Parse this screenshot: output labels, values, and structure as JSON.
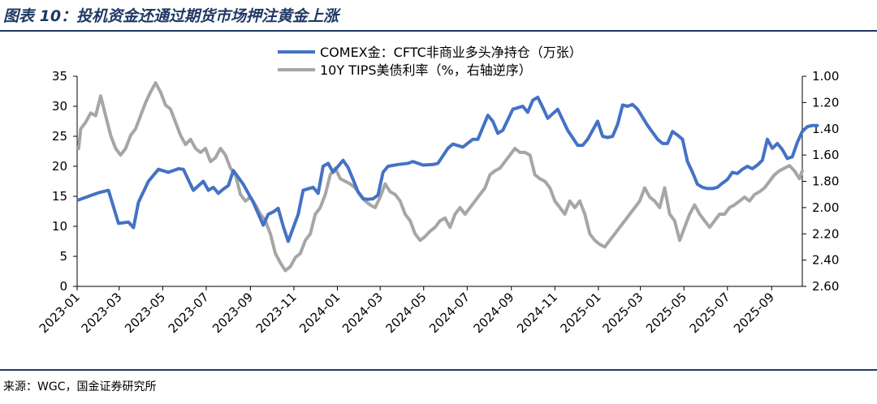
{
  "figure": {
    "title": "图表 10：投机资金还通过期货市场押注黄金上涨",
    "source": "来源：WGC，国金证券研究所"
  },
  "colors": {
    "series1": "#4472c4",
    "series2": "#a6a6a6",
    "rule": "#1f3864",
    "axis": "#000000"
  },
  "chart_data": {
    "type": "line",
    "title": "",
    "legend_position": "top-center",
    "grid": false,
    "x_ticks": [
      "2023-01",
      "2023-03",
      "2023-05",
      "2023-07",
      "2023-09",
      "2023-11",
      "2024-01",
      "2024-03",
      "2024-05",
      "2024-07",
      "2024-09",
      "2024-11",
      "2025-01",
      "2025-03",
      "2025-05",
      "2025-07",
      "2025-09"
    ],
    "xlim": [
      "2023-01-01",
      "2025-10-14"
    ],
    "y_left": {
      "ticks": [
        "0",
        "5",
        "10",
        "15",
        "20",
        "25",
        "30",
        "35"
      ],
      "lim": [
        0,
        35
      ]
    },
    "y_right": {
      "ticks": [
        "1.00",
        "1.20",
        "1.40",
        "1.60",
        "1.80",
        "2.00",
        "2.20",
        "2.40",
        "2.60"
      ],
      "lim": [
        1.0,
        2.6
      ],
      "reversed": true
    },
    "series": [
      {
        "name": "COMEX金：CFTC非商业多头净持仓（万张）",
        "axis": "left",
        "points": [
          [
            "2023-01-03",
            14.4
          ],
          [
            "2023-01-17",
            15.0
          ],
          [
            "2023-01-31",
            15.6
          ],
          [
            "2023-02-14",
            16.0
          ],
          [
            "2023-02-28",
            10.5
          ],
          [
            "2023-03-14",
            10.7
          ],
          [
            "2023-03-21",
            9.8
          ],
          [
            "2023-03-28",
            14.0
          ],
          [
            "2023-04-11",
            17.5
          ],
          [
            "2023-04-25",
            19.5
          ],
          [
            "2023-05-09",
            19.0
          ],
          [
            "2023-05-23",
            19.6
          ],
          [
            "2023-05-30",
            19.5
          ],
          [
            "2023-06-13",
            16.0
          ],
          [
            "2023-06-27",
            17.5
          ],
          [
            "2023-07-04",
            16.0
          ],
          [
            "2023-07-11",
            16.5
          ],
          [
            "2023-07-18",
            15.5
          ],
          [
            "2023-07-25",
            16.2
          ],
          [
            "2023-08-01",
            16.8
          ],
          [
            "2023-08-08",
            19.3
          ],
          [
            "2023-08-22",
            17.0
          ],
          [
            "2023-09-05",
            14.0
          ],
          [
            "2023-09-19",
            10.2
          ],
          [
            "2023-09-26",
            12.0
          ],
          [
            "2023-10-03",
            12.4
          ],
          [
            "2023-10-10",
            13.0
          ],
          [
            "2023-10-17",
            10.0
          ],
          [
            "2023-10-24",
            7.5
          ],
          [
            "2023-11-07",
            12.0
          ],
          [
            "2023-11-14",
            16.0
          ],
          [
            "2023-11-28",
            16.5
          ],
          [
            "2023-12-05",
            15.5
          ],
          [
            "2023-12-12",
            20.0
          ],
          [
            "2023-12-19",
            20.5
          ],
          [
            "2023-12-26",
            19.0
          ],
          [
            "2024-01-09",
            21.0
          ],
          [
            "2024-01-16",
            19.8
          ],
          [
            "2024-01-23",
            17.8
          ],
          [
            "2024-01-30",
            15.7
          ],
          [
            "2024-02-06",
            14.6
          ],
          [
            "2024-02-13",
            14.5
          ],
          [
            "2024-02-20",
            14.6
          ],
          [
            "2024-02-27",
            15.2
          ],
          [
            "2024-03-05",
            19.0
          ],
          [
            "2024-03-12",
            20.0
          ],
          [
            "2024-03-26",
            20.3
          ],
          [
            "2024-04-09",
            20.5
          ],
          [
            "2024-04-16",
            20.8
          ],
          [
            "2024-04-30",
            20.2
          ],
          [
            "2024-05-14",
            20.3
          ],
          [
            "2024-05-21",
            20.5
          ],
          [
            "2024-06-04",
            23.0
          ],
          [
            "2024-06-11",
            23.7
          ],
          [
            "2024-06-25",
            23.2
          ],
          [
            "2024-07-09",
            24.5
          ],
          [
            "2024-07-16",
            24.5
          ],
          [
            "2024-07-30",
            28.5
          ],
          [
            "2024-08-06",
            27.5
          ],
          [
            "2024-08-13",
            25.5
          ],
          [
            "2024-08-20",
            26.0
          ],
          [
            "2024-09-03",
            29.5
          ],
          [
            "2024-09-17",
            30.0
          ],
          [
            "2024-09-24",
            29.0
          ],
          [
            "2024-10-01",
            31.0
          ],
          [
            "2024-10-08",
            31.5
          ],
          [
            "2024-10-15",
            29.8
          ],
          [
            "2024-10-22",
            28.0
          ],
          [
            "2024-11-05",
            29.5
          ],
          [
            "2024-11-19",
            26.0
          ],
          [
            "2024-12-03",
            23.5
          ],
          [
            "2024-12-10",
            23.5
          ],
          [
            "2024-12-17",
            24.5
          ],
          [
            "2024-12-31",
            27.5
          ],
          [
            "2025-01-07",
            25.0
          ],
          [
            "2025-01-14",
            24.8
          ],
          [
            "2025-01-21",
            25.0
          ],
          [
            "2025-01-28",
            27.0
          ],
          [
            "2025-02-04",
            30.2
          ],
          [
            "2025-02-11",
            30.0
          ],
          [
            "2025-02-18",
            30.3
          ],
          [
            "2025-02-25",
            29.5
          ],
          [
            "2025-03-11",
            26.8
          ],
          [
            "2025-03-25",
            24.5
          ],
          [
            "2025-04-01",
            23.8
          ],
          [
            "2025-04-08",
            23.8
          ],
          [
            "2025-04-15",
            25.8
          ],
          [
            "2025-04-22",
            25.2
          ],
          [
            "2025-04-29",
            24.5
          ],
          [
            "2025-05-06",
            20.8
          ],
          [
            "2025-05-13",
            19.0
          ],
          [
            "2025-05-20",
            17.0
          ],
          [
            "2025-05-27",
            16.5
          ],
          [
            "2025-06-03",
            16.3
          ],
          [
            "2025-06-10",
            16.3
          ],
          [
            "2025-06-17",
            16.5
          ],
          [
            "2025-06-24",
            17.2
          ],
          [
            "2025-07-01",
            17.8
          ],
          [
            "2025-07-08",
            19.0
          ],
          [
            "2025-07-15",
            18.8
          ],
          [
            "2025-07-22",
            19.5
          ],
          [
            "2025-07-29",
            20.0
          ],
          [
            "2025-08-05",
            19.6
          ],
          [
            "2025-08-12",
            20.2
          ],
          [
            "2025-08-19",
            21.0
          ],
          [
            "2025-08-26",
            24.5
          ],
          [
            "2025-09-02",
            23.0
          ],
          [
            "2025-09-09",
            23.8
          ],
          [
            "2025-09-16",
            22.8
          ],
          [
            "2025-09-23",
            21.3
          ],
          [
            "2025-09-30",
            21.6
          ],
          [
            "2025-10-07",
            24.0
          ],
          [
            "2025-10-14",
            25.8
          ],
          [
            "2025-10-21",
            26.6
          ],
          [
            "2025-10-28",
            26.8
          ],
          [
            "2025-11-04",
            26.8
          ]
        ]
      },
      {
        "name": "10Y TIPS美债利率（%，右轴逆序）",
        "axis": "right",
        "points": [
          [
            "2023-01-03",
            1.55
          ],
          [
            "2023-01-06",
            1.4
          ],
          [
            "2023-01-13",
            1.35
          ],
          [
            "2023-01-20",
            1.28
          ],
          [
            "2023-01-27",
            1.3
          ],
          [
            "2023-02-03",
            1.15
          ],
          [
            "2023-02-10",
            1.3
          ],
          [
            "2023-02-17",
            1.45
          ],
          [
            "2023-02-24",
            1.55
          ],
          [
            "2023-03-03",
            1.6
          ],
          [
            "2023-03-10",
            1.55
          ],
          [
            "2023-03-17",
            1.45
          ],
          [
            "2023-03-24",
            1.4
          ],
          [
            "2023-03-31",
            1.3
          ],
          [
            "2023-04-07",
            1.2
          ],
          [
            "2023-04-14",
            1.12
          ],
          [
            "2023-04-21",
            1.05
          ],
          [
            "2023-04-28",
            1.12
          ],
          [
            "2023-05-05",
            1.22
          ],
          [
            "2023-05-12",
            1.25
          ],
          [
            "2023-05-19",
            1.35
          ],
          [
            "2023-05-26",
            1.45
          ],
          [
            "2023-06-02",
            1.52
          ],
          [
            "2023-06-09",
            1.48
          ],
          [
            "2023-06-16",
            1.55
          ],
          [
            "2023-06-23",
            1.58
          ],
          [
            "2023-06-30",
            1.55
          ],
          [
            "2023-07-07",
            1.65
          ],
          [
            "2023-07-14",
            1.62
          ],
          [
            "2023-07-21",
            1.55
          ],
          [
            "2023-07-28",
            1.6
          ],
          [
            "2023-08-04",
            1.7
          ],
          [
            "2023-08-11",
            1.75
          ],
          [
            "2023-08-18",
            1.9
          ],
          [
            "2023-08-25",
            1.95
          ],
          [
            "2023-09-01",
            1.92
          ],
          [
            "2023-09-08",
            1.98
          ],
          [
            "2023-09-15",
            2.05
          ],
          [
            "2023-09-22",
            2.1
          ],
          [
            "2023-09-29",
            2.2
          ],
          [
            "2023-10-06",
            2.35
          ],
          [
            "2023-10-13",
            2.42
          ],
          [
            "2023-10-20",
            2.48
          ],
          [
            "2023-10-27",
            2.45
          ],
          [
            "2023-11-03",
            2.38
          ],
          [
            "2023-11-10",
            2.35
          ],
          [
            "2023-11-17",
            2.25
          ],
          [
            "2023-11-24",
            2.2
          ],
          [
            "2023-12-01",
            2.05
          ],
          [
            "2023-12-08",
            2.0
          ],
          [
            "2023-12-15",
            1.9
          ],
          [
            "2023-12-22",
            1.75
          ],
          [
            "2023-12-29",
            1.7
          ],
          [
            "2024-01-05",
            1.78
          ],
          [
            "2024-01-12",
            1.8
          ],
          [
            "2024-01-19",
            1.82
          ],
          [
            "2024-01-26",
            1.85
          ],
          [
            "2024-02-02",
            1.9
          ],
          [
            "2024-02-09",
            1.95
          ],
          [
            "2024-02-16",
            1.98
          ],
          [
            "2024-02-23",
            2.0
          ],
          [
            "2024-03-01",
            1.92
          ],
          [
            "2024-03-08",
            1.82
          ],
          [
            "2024-03-15",
            1.88
          ],
          [
            "2024-03-22",
            1.9
          ],
          [
            "2024-03-29",
            1.95
          ],
          [
            "2024-04-05",
            2.05
          ],
          [
            "2024-04-12",
            2.1
          ],
          [
            "2024-04-19",
            2.2
          ],
          [
            "2024-04-26",
            2.25
          ],
          [
            "2024-05-03",
            2.22
          ],
          [
            "2024-05-10",
            2.18
          ],
          [
            "2024-05-17",
            2.15
          ],
          [
            "2024-05-24",
            2.1
          ],
          [
            "2024-05-31",
            2.08
          ],
          [
            "2024-06-07",
            2.15
          ],
          [
            "2024-06-14",
            2.05
          ],
          [
            "2024-06-21",
            2.0
          ],
          [
            "2024-06-28",
            2.05
          ],
          [
            "2024-07-05",
            2.0
          ],
          [
            "2024-07-12",
            1.95
          ],
          [
            "2024-07-19",
            1.9
          ],
          [
            "2024-07-26",
            1.85
          ],
          [
            "2024-08-02",
            1.75
          ],
          [
            "2024-08-09",
            1.72
          ],
          [
            "2024-08-16",
            1.7
          ],
          [
            "2024-08-23",
            1.65
          ],
          [
            "2024-08-30",
            1.6
          ],
          [
            "2024-09-06",
            1.55
          ],
          [
            "2024-09-13",
            1.58
          ],
          [
            "2024-09-20",
            1.58
          ],
          [
            "2024-09-27",
            1.6
          ],
          [
            "2024-10-04",
            1.75
          ],
          [
            "2024-10-11",
            1.78
          ],
          [
            "2024-10-18",
            1.8
          ],
          [
            "2024-10-25",
            1.85
          ],
          [
            "2024-11-01",
            1.95
          ],
          [
            "2024-11-08",
            2.0
          ],
          [
            "2024-11-15",
            2.05
          ],
          [
            "2024-11-22",
            1.95
          ],
          [
            "2024-11-29",
            2.0
          ],
          [
            "2024-12-06",
            1.95
          ],
          [
            "2024-12-13",
            2.05
          ],
          [
            "2024-12-20",
            2.2
          ],
          [
            "2024-12-27",
            2.25
          ],
          [
            "2025-01-03",
            2.28
          ],
          [
            "2025-01-10",
            2.3
          ],
          [
            "2025-01-17",
            2.25
          ],
          [
            "2025-01-24",
            2.2
          ],
          [
            "2025-01-31",
            2.15
          ],
          [
            "2025-02-07",
            2.1
          ],
          [
            "2025-02-14",
            2.05
          ],
          [
            "2025-02-21",
            2.0
          ],
          [
            "2025-02-28",
            1.95
          ],
          [
            "2025-03-07",
            1.85
          ],
          [
            "2025-03-14",
            1.92
          ],
          [
            "2025-03-21",
            1.95
          ],
          [
            "2025-03-28",
            2.0
          ],
          [
            "2025-04-04",
            1.85
          ],
          [
            "2025-04-11",
            2.05
          ],
          [
            "2025-04-18",
            2.1
          ],
          [
            "2025-04-25",
            2.25
          ],
          [
            "2025-05-02",
            2.15
          ],
          [
            "2025-05-09",
            2.05
          ],
          [
            "2025-05-16",
            1.98
          ],
          [
            "2025-05-23",
            2.05
          ],
          [
            "2025-05-30",
            2.1
          ],
          [
            "2025-06-06",
            2.15
          ],
          [
            "2025-06-13",
            2.1
          ],
          [
            "2025-06-20",
            2.05
          ],
          [
            "2025-06-27",
            2.05
          ],
          [
            "2025-07-04",
            2.0
          ],
          [
            "2025-07-11",
            1.98
          ],
          [
            "2025-07-18",
            1.95
          ],
          [
            "2025-07-25",
            1.92
          ],
          [
            "2025-08-01",
            1.95
          ],
          [
            "2025-08-08",
            1.9
          ],
          [
            "2025-08-15",
            1.88
          ],
          [
            "2025-08-22",
            1.85
          ],
          [
            "2025-08-29",
            1.8
          ],
          [
            "2025-09-05",
            1.75
          ],
          [
            "2025-09-12",
            1.72
          ],
          [
            "2025-09-19",
            1.7
          ],
          [
            "2025-09-26",
            1.68
          ],
          [
            "2025-10-03",
            1.72
          ],
          [
            "2025-10-10",
            1.78
          ],
          [
            "2025-10-14",
            1.72
          ]
        ]
      }
    ]
  }
}
